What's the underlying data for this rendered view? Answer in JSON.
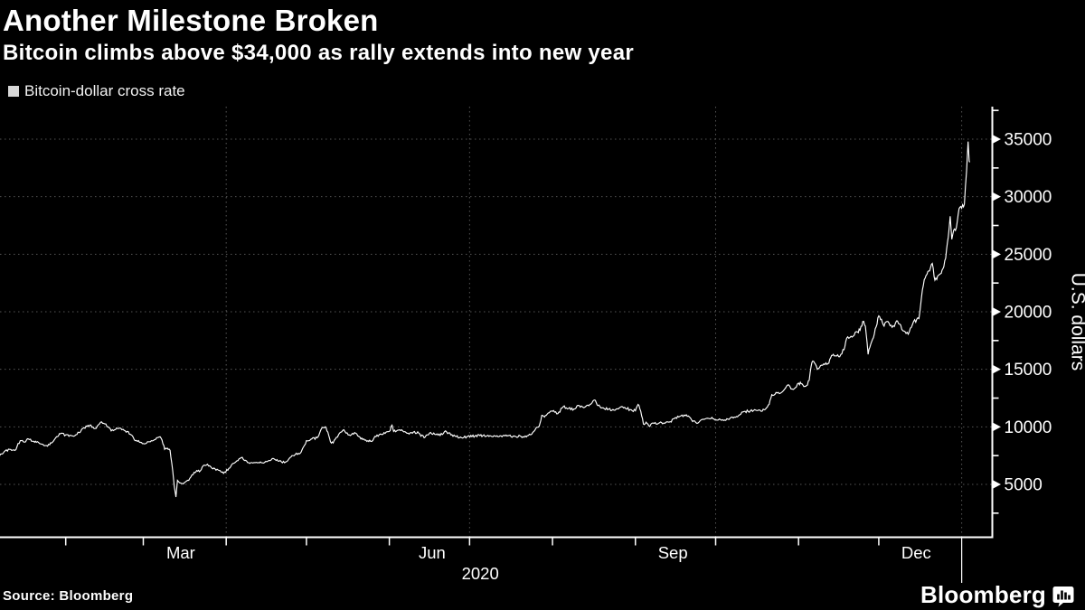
{
  "header": {
    "title": "Another Milestone Broken",
    "subtitle": "Bitcoin climbs above $34,000 as rally extends into new year"
  },
  "legend": {
    "label": "Bitcoin-dollar cross rate",
    "marker_color": "#d8d8d8"
  },
  "footer": {
    "source": "Source: Bloomberg",
    "brand": "Bloomberg"
  },
  "colors": {
    "background": "#000000",
    "line": "#ffffff",
    "axis": "#ffffff",
    "grid": "#555555",
    "tick_label": "#ffffff"
  },
  "chart_data": {
    "type": "line",
    "title": "Another Milestone Broken",
    "subtitle": "Bitcoin climbs above $34,000 as rally extends into new year",
    "series_name": "Bitcoin-dollar cross rate",
    "x_unit": "days since 2020-01-01",
    "ylabel": "U.S. dollars",
    "y_axis": {
      "ticks": [
        5000,
        10000,
        15000,
        20000,
        25000,
        30000,
        35000
      ],
      "minor_step": 2500,
      "minor_min": 2500,
      "minor_max": 37500,
      "range_approx": [
        0,
        38000
      ]
    },
    "x_axis": {
      "month_tick_days": [
        31,
        60,
        91,
        121,
        152,
        182,
        213,
        244,
        274,
        305,
        335
      ],
      "quarter_gridline_days": [
        91,
        182,
        274,
        366
      ],
      "year_divider_day": 366,
      "labels": [
        {
          "label": "Mar",
          "day": 74
        },
        {
          "label": "Jun",
          "day": 168
        },
        {
          "label": "Sep",
          "day": 258
        },
        {
          "label": "Dec",
          "day": 349
        }
      ],
      "year_label": {
        "label": "2020",
        "day": 186
      }
    },
    "points": [
      [
        5,
        7200
      ],
      [
        7,
        7650
      ],
      [
        8,
        7850
      ],
      [
        10,
        8050
      ],
      [
        12,
        7950
      ],
      [
        14,
        8800
      ],
      [
        16,
        8700
      ],
      [
        17,
        8950
      ],
      [
        19,
        8750
      ],
      [
        20,
        8650
      ],
      [
        22,
        8500
      ],
      [
        23,
        8350
      ],
      [
        25,
        8450
      ],
      [
        26,
        8650
      ],
      [
        28,
        9150
      ],
      [
        29,
        9400
      ],
      [
        31,
        9300
      ],
      [
        33,
        9250
      ],
      [
        34,
        9180
      ],
      [
        36,
        9500
      ],
      [
        37,
        9800
      ],
      [
        39,
        10050
      ],
      [
        40,
        10150
      ],
      [
        42,
        9850
      ],
      [
        44,
        10400
      ],
      [
        46,
        10250
      ],
      [
        48,
        9650
      ],
      [
        50,
        9900
      ],
      [
        52,
        9750
      ],
      [
        54,
        9600
      ],
      [
        56,
        9200
      ],
      [
        57,
        8800
      ],
      [
        59,
        8650
      ],
      [
        60,
        8550
      ],
      [
        62,
        8700
      ],
      [
        63,
        8800
      ],
      [
        65,
        9050
      ],
      [
        66,
        9120
      ],
      [
        67,
        8850
      ],
      [
        68,
        8050
      ],
      [
        69,
        8150
      ],
      [
        70,
        7950
      ],
      [
        71,
        6200
      ],
      [
        71.6,
        4800
      ],
      [
        72.2,
        3900
      ],
      [
        72.8,
        5350
      ],
      [
        73.5,
        5150
      ],
      [
        75,
        5050
      ],
      [
        77,
        5350
      ],
      [
        79,
        6050
      ],
      [
        80,
        6200
      ],
      [
        81,
        6100
      ],
      [
        82,
        6500
      ],
      [
        84,
        6750
      ],
      [
        86,
        6350
      ],
      [
        88,
        6250
      ],
      [
        89,
        6100
      ],
      [
        90,
        5950
      ],
      [
        92,
        6400
      ],
      [
        93,
        6700
      ],
      [
        95,
        7050
      ],
      [
        97,
        7350
      ],
      [
        99,
        6900
      ],
      [
        101,
        6850
      ],
      [
        103,
        6900
      ],
      [
        105,
        6850
      ],
      [
        107,
        7080
      ],
      [
        109,
        7200
      ],
      [
        110,
        7150
      ],
      [
        112,
        6880
      ],
      [
        114,
        7050
      ],
      [
        116,
        7500
      ],
      [
        118,
        7700
      ],
      [
        119,
        7800
      ],
      [
        120,
        8300
      ],
      [
        121,
        8800
      ],
      [
        123,
        8950
      ],
      [
        125,
        9050
      ],
      [
        126,
        9500
      ],
      [
        127,
        9950
      ],
      [
        128,
        10000
      ],
      [
        129,
        9550
      ],
      [
        130,
        8700
      ],
      [
        131,
        8600
      ],
      [
        133,
        9300
      ],
      [
        135,
        9750
      ],
      [
        137,
        9300
      ],
      [
        139,
        9500
      ],
      [
        141,
        9100
      ],
      [
        142,
        8900
      ],
      [
        144,
        8800
      ],
      [
        145,
        8750
      ],
      [
        147,
        9150
      ],
      [
        149,
        9350
      ],
      [
        150,
        9500
      ],
      [
        152,
        9600
      ],
      [
        153,
        10150
      ],
      [
        153.6,
        9600
      ],
      [
        155,
        9700
      ],
      [
        157,
        9650
      ],
      [
        159,
        9450
      ],
      [
        161,
        9550
      ],
      [
        163,
        9450
      ],
      [
        165,
        9050
      ],
      [
        167,
        9450
      ],
      [
        169,
        9350
      ],
      [
        171,
        9250
      ],
      [
        173,
        9650
      ],
      [
        175,
        9300
      ],
      [
        177,
        9150
      ],
      [
        179,
        9050
      ],
      [
        181,
        9150
      ],
      [
        184,
        9200
      ],
      [
        187,
        9250
      ],
      [
        190,
        9200
      ],
      [
        193,
        9150
      ],
      [
        196,
        9200
      ],
      [
        199,
        9180
      ],
      [
        202,
        9150
      ],
      [
        204,
        9250
      ],
      [
        206,
        9600
      ],
      [
        207,
        9950
      ],
      [
        208,
        10050
      ],
      [
        209,
        11000
      ],
      [
        210,
        10850
      ],
      [
        211,
        11100
      ],
      [
        213,
        11350
      ],
      [
        215,
        11150
      ],
      [
        217,
        11750
      ],
      [
        219,
        11600
      ],
      [
        221,
        11550
      ],
      [
        223,
        11850
      ],
      [
        225,
        11700
      ],
      [
        227,
        11950
      ],
      [
        229,
        12300
      ],
      [
        230,
        11850
      ],
      [
        232,
        11650
      ],
      [
        234,
        11550
      ],
      [
        236,
        11450
      ],
      [
        238,
        11650
      ],
      [
        240,
        11700
      ],
      [
        242,
        11500
      ],
      [
        244,
        11400
      ],
      [
        245,
        11950
      ],
      [
        246,
        11350
      ],
      [
        247,
        10250
      ],
      [
        248,
        10400
      ],
      [
        249,
        10100
      ],
      [
        251,
        10300
      ],
      [
        253,
        10350
      ],
      [
        255,
        10300
      ],
      [
        257,
        10450
      ],
      [
        259,
        10800
      ],
      [
        261,
        10950
      ],
      [
        263,
        11050
      ],
      [
        265,
        10600
      ],
      [
        267,
        10300
      ],
      [
        269,
        10650
      ],
      [
        271,
        10750
      ],
      [
        273,
        10700
      ],
      [
        275,
        10600
      ],
      [
        277,
        10550
      ],
      [
        279,
        10650
      ],
      [
        281,
        10850
      ],
      [
        283,
        11050
      ],
      [
        285,
        11350
      ],
      [
        287,
        11400
      ],
      [
        289,
        11450
      ],
      [
        291,
        11350
      ],
      [
        293,
        11650
      ],
      [
        294,
        11950
      ],
      [
        295,
        12800
      ],
      [
        297,
        12950
      ],
      [
        299,
        13050
      ],
      [
        301,
        13650
      ],
      [
        303,
        13250
      ],
      [
        305,
        13800
      ],
      [
        306,
        13750
      ],
      [
        307,
        13500
      ],
      [
        308,
        13600
      ],
      [
        309,
        14050
      ],
      [
        310,
        15600
      ],
      [
        311,
        15550
      ],
      [
        312,
        15000
      ],
      [
        314,
        15350
      ],
      [
        316,
        15500
      ],
      [
        317,
        16000
      ],
      [
        318,
        16300
      ],
      [
        320,
        16100
      ],
      [
        322,
        16700
      ],
      [
        323,
        17700
      ],
      [
        325,
        17800
      ],
      [
        327,
        18250
      ],
      [
        328,
        18400
      ],
      [
        329,
        19150
      ],
      [
        330,
        18750
      ],
      [
        331,
        16300
      ],
      [
        332,
        17200
      ],
      [
        333,
        17750
      ],
      [
        334,
        18700
      ],
      [
        335,
        19650
      ],
      [
        336,
        19350
      ],
      [
        337,
        18750
      ],
      [
        338,
        19150
      ],
      [
        340,
        18650
      ],
      [
        342,
        19200
      ],
      [
        344,
        18350
      ],
      [
        346,
        18050
      ],
      [
        348,
        19150
      ],
      [
        350,
        19400
      ],
      [
        351,
        21350
      ],
      [
        352,
        22800
      ],
      [
        353,
        23250
      ],
      [
        354,
        23550
      ],
      [
        355,
        24200
      ],
      [
        356,
        22750
      ],
      [
        357,
        23100
      ],
      [
        358,
        23300
      ],
      [
        359,
        23750
      ],
      [
        360,
        24650
      ],
      [
        361,
        26500
      ],
      [
        361.7,
        28300
      ],
      [
        362.3,
        26300
      ],
      [
        363,
        27100
      ],
      [
        364,
        27300
      ],
      [
        365,
        28950
      ],
      [
        366,
        29000
      ],
      [
        367,
        29350
      ],
      [
        367.8,
        32200
      ],
      [
        368.4,
        34800
      ],
      [
        368.8,
        33100
      ],
      [
        369,
        33000
      ]
    ]
  }
}
